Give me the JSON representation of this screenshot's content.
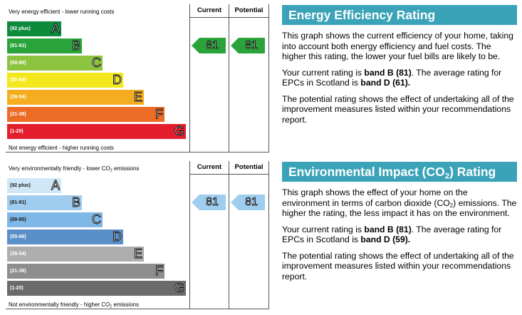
{
  "energy_chart": {
    "top_label": "Very energy efficient - lower running costs",
    "bottom_label": "Not energy efficient - higher running costs",
    "current_header": "Current",
    "potential_header": "Potential",
    "bands": [
      {
        "range": "(92 plus)",
        "letter": "A",
        "color": "#0d8a3c"
      },
      {
        "range": "(81-91)",
        "letter": "B",
        "color": "#2aa43a"
      },
      {
        "range": "(69-80)",
        "letter": "C",
        "color": "#8cc43f"
      },
      {
        "range": "(55-68)",
        "letter": "D",
        "color": "#f3e81d"
      },
      {
        "range": "(39-54)",
        "letter": "E",
        "color": "#f4ad1f"
      },
      {
        "range": "(21-38)",
        "letter": "F",
        "color": "#ec6b25"
      },
      {
        "range": "(1-20)",
        "letter": "G",
        "color": "#e31d2c"
      }
    ],
    "current_value": "81",
    "potential_value": "81",
    "arrow_color": "#2aa43a"
  },
  "env_chart": {
    "top_label_pre": "Very environmentally friendly - lower CO",
    "top_label_sub": "2",
    "top_label_post": " emissions",
    "bottom_label_pre": "Not environmentally friendly - higher CO",
    "bottom_label_sub": "2",
    "bottom_label_post": " emissions",
    "current_header": "Current",
    "potential_header": "Potential",
    "bands": [
      {
        "range": "(92 plus)",
        "letter": "A",
        "color": "#cfe7f7"
      },
      {
        "range": "(81-91)",
        "letter": "B",
        "color": "#9fcdef"
      },
      {
        "range": "(69-80)",
        "letter": "C",
        "color": "#7fb7e6"
      },
      {
        "range": "(55-68)",
        "letter": "D",
        "color": "#5b8fc9"
      },
      {
        "range": "(39-54)",
        "letter": "E",
        "color": "#adadad"
      },
      {
        "range": "(21-38)",
        "letter": "F",
        "color": "#8e8e8e"
      },
      {
        "range": "(1-20)",
        "letter": "G",
        "color": "#6b6b6b"
      }
    ],
    "current_value": "81",
    "potential_value": "81",
    "arrow_color": "#9fcdef"
  },
  "energy_text": {
    "heading": "Energy Efficiency Rating",
    "p1": "This graph shows the current efficiency of your home, taking into account both energy efficiency and fuel costs. The higher this rating, the lower your fuel bills are likely to be.",
    "p2_pre": "Your current rating is ",
    "p2_b1": "band B (81)",
    "p2_mid": ". The average rating for EPCs in Scotland is ",
    "p2_b2": "band D (61).",
    "p3": "The potential rating shows the effect of undertaking all of the improvement measures listed within your recommendations report."
  },
  "env_text": {
    "heading_pre": "Environmental Impact (CO",
    "heading_sub": "2",
    "heading_post": ") Rating",
    "p1_pre": "This graph shows the effect of your home on the environment in terms of carbon dioxide (CO",
    "p1_sub": "2",
    "p1_post": ") emissions. The higher the rating, the less impact it has on the environment.",
    "p2_pre": "Your current rating is ",
    "p2_b1": "band B (81)",
    "p2_mid": ". The average rating for EPCs in Scotland is ",
    "p2_b2": "band D (59).",
    "p3": "The potential rating shows the effect of undertaking all of the improvement measures listed within your recommendations report."
  }
}
